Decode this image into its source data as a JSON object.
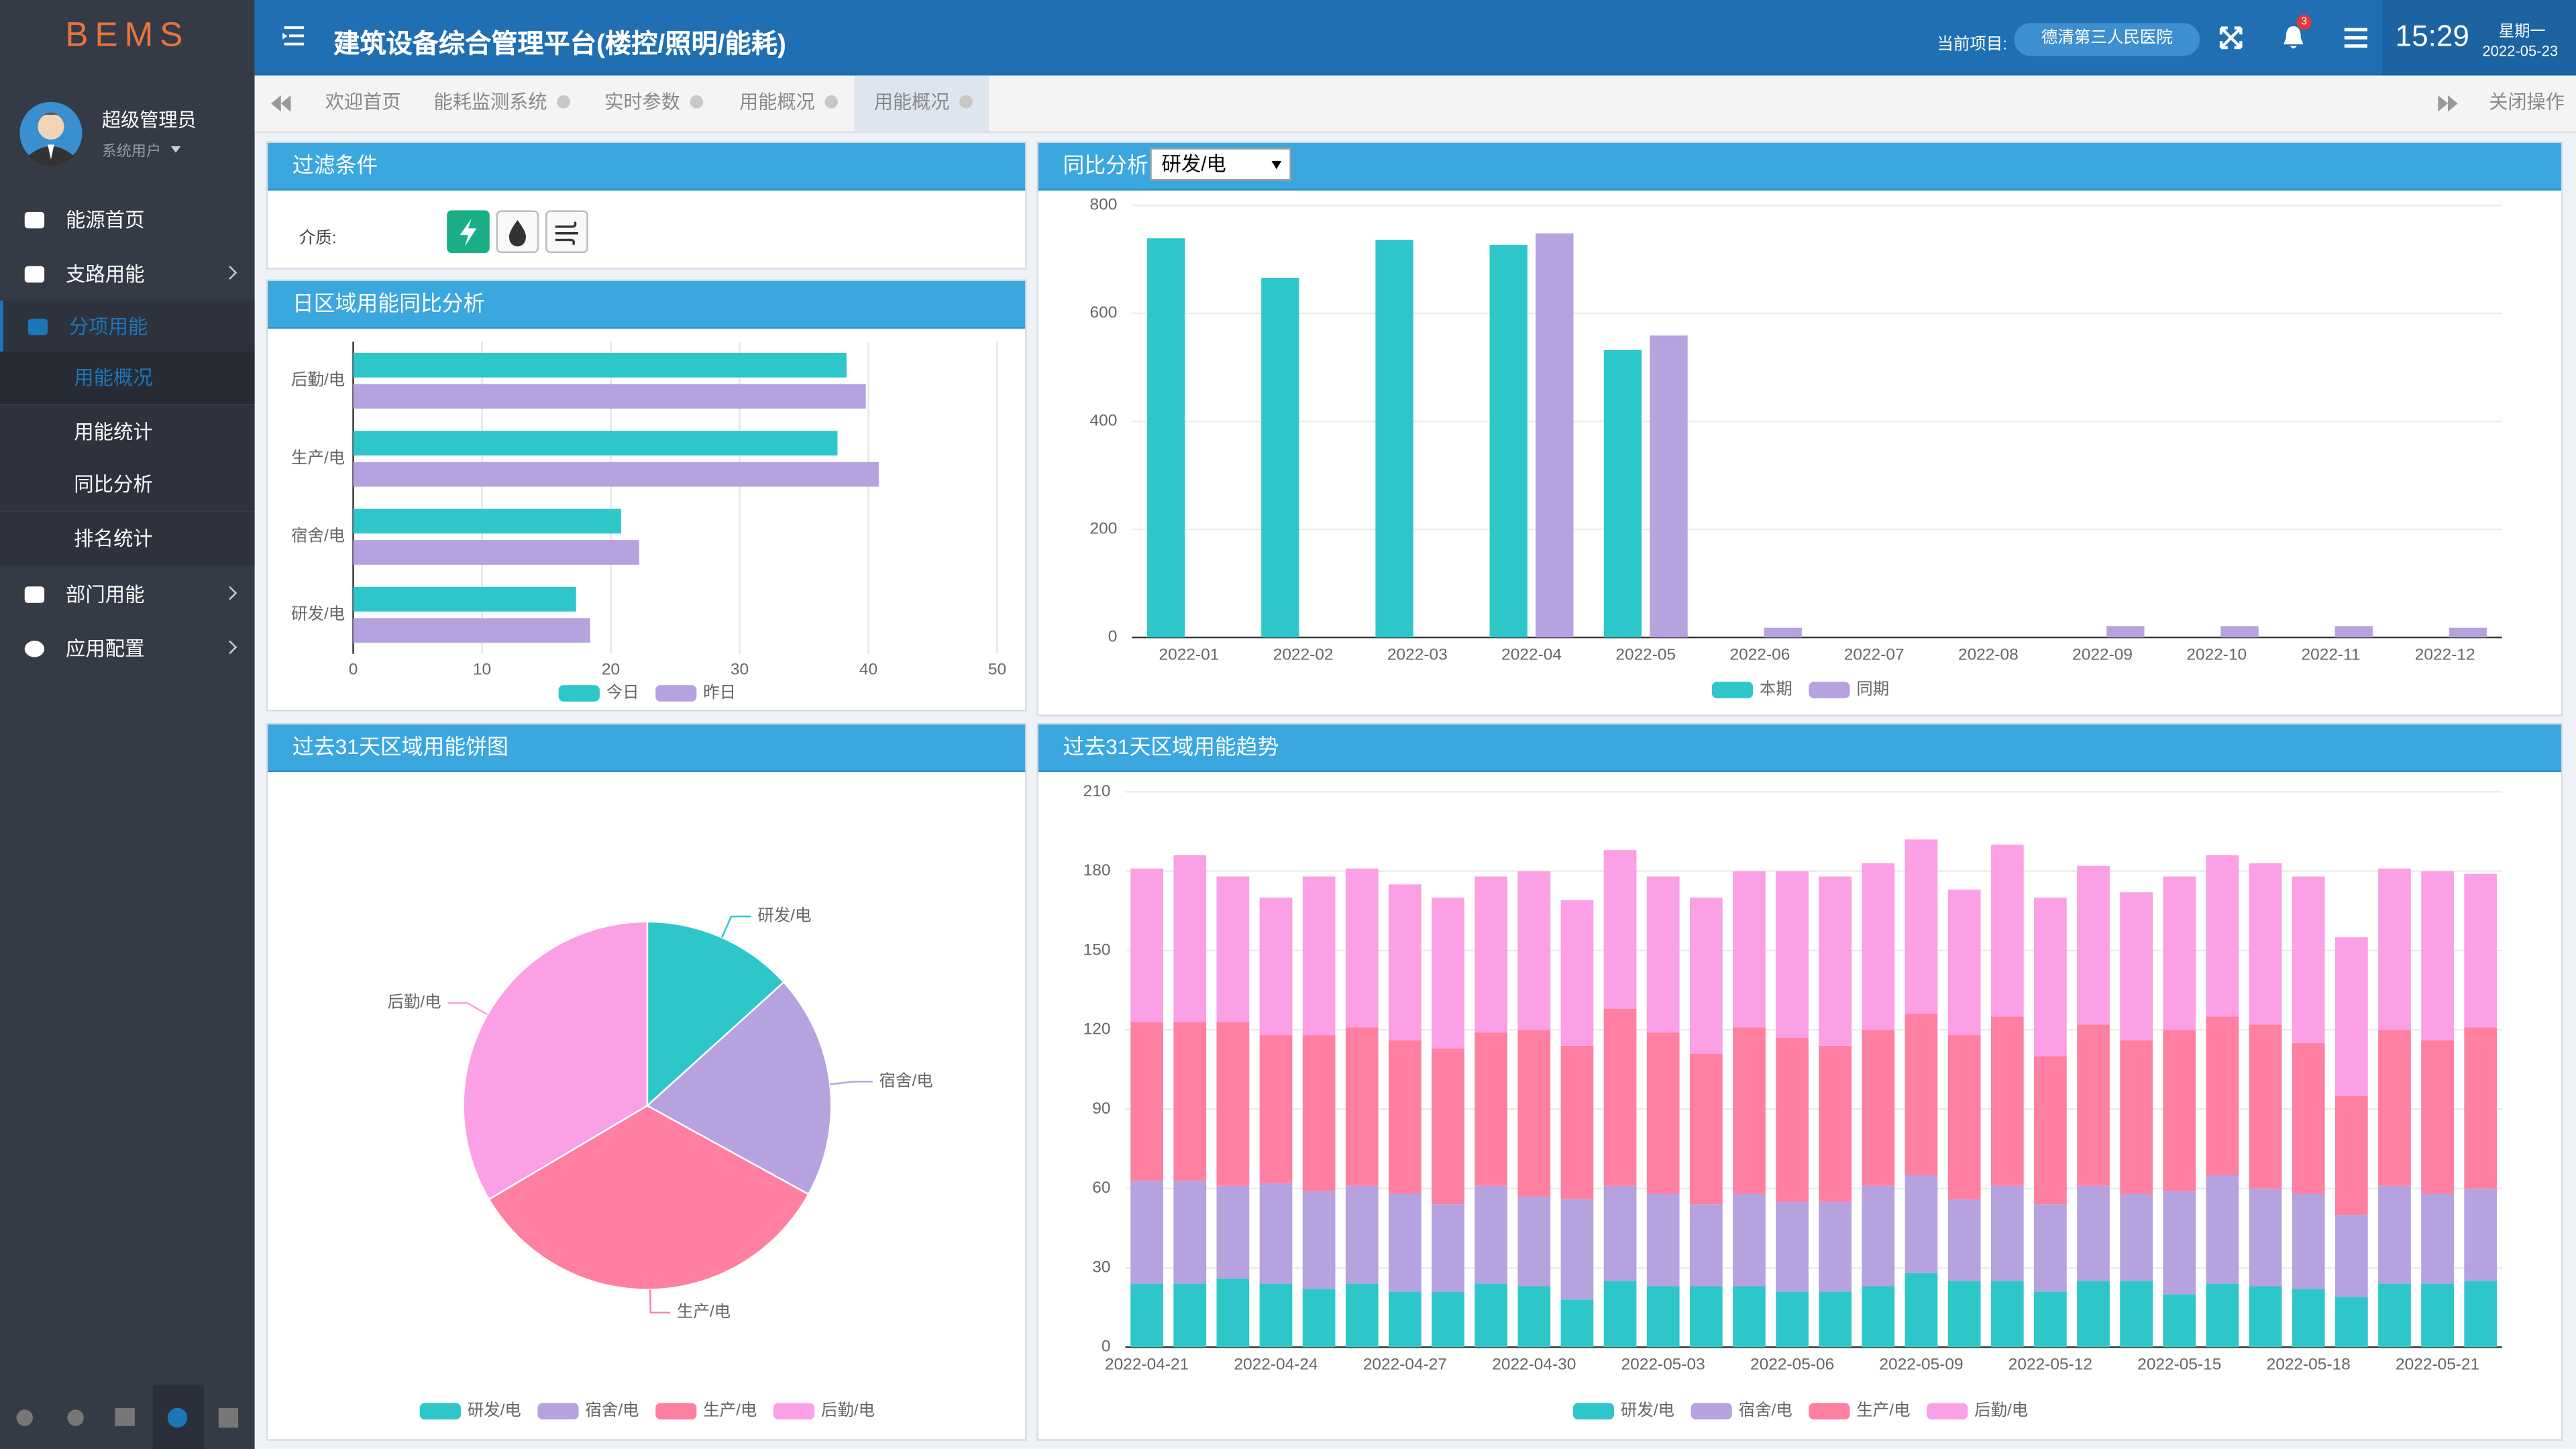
{
  "sidebar": {
    "logo": "BEMS",
    "user": "超级管理员",
    "role": "系统用户",
    "menu": [
      {
        "label": "能源首页"
      },
      {
        "label": "支路用能"
      },
      {
        "label": "分项用能",
        "children": [
          "用能概况",
          "用能统计",
          "同比分析",
          "排名统计"
        ]
      },
      {
        "label": "部门用能"
      },
      {
        "label": "应用配置"
      }
    ]
  },
  "header": {
    "title": "建筑设备综合管理平台(楼控/照明/能耗)",
    "project_label": "当前项目:",
    "project": "德清第三人民医院",
    "notifications": 3,
    "time": "15:29",
    "weekday": "星期一",
    "date": "2022-05-23"
  },
  "tabs": {
    "items": [
      "欢迎首页",
      "能耗监测系统",
      "实时参数",
      "用能概况",
      "用能概况"
    ],
    "close_all": "关闭操作"
  },
  "filter": {
    "title": "过滤条件",
    "medium_label": "介质:"
  },
  "chart_data": [
    {
      "type": "bar",
      "horizontal": true,
      "title": "日区域用能同比分析",
      "categories": [
        "后勤/电",
        "生产/电",
        "宿舍/电",
        "研发/电"
      ],
      "series": [
        {
          "name": "今日",
          "color": "#2ec7c9",
          "values": [
            38.3,
            37.6,
            20.8,
            17.3
          ]
        },
        {
          "name": "昨日",
          "color": "#b6a2de",
          "values": [
            39.8,
            40.8,
            22.2,
            18.4
          ]
        }
      ],
      "xlim": [
        0,
        50
      ],
      "xticks": [
        0,
        10,
        20,
        30,
        40,
        50
      ],
      "grid": true
    },
    {
      "type": "bar",
      "title": "同比分析",
      "selector": "研发/电",
      "categories": [
        "2022-01",
        "2022-02",
        "2022-03",
        "2022-04",
        "2022-05",
        "2022-06",
        "2022-07",
        "2022-08",
        "2022-09",
        "2022-10",
        "2022-11",
        "2022-12"
      ],
      "series": [
        {
          "name": "本期",
          "color": "#2ec7c9",
          "values": [
            739,
            666,
            736,
            727,
            532,
            null,
            null,
            null,
            null,
            null,
            null,
            null
          ]
        },
        {
          "name": "同期",
          "color": "#b6a2de",
          "values": [
            null,
            null,
            null,
            748,
            559,
            18,
            null,
            null,
            21,
            21,
            21,
            18
          ]
        }
      ],
      "ylim": [
        0,
        800
      ],
      "yticks": [
        0,
        200,
        400,
        600,
        800
      ],
      "grid": true
    },
    {
      "type": "pie",
      "title": "过去31天区域用能饼图",
      "categories": [
        "研发/电",
        "宿舍/电",
        "生产/电",
        "后勤/电"
      ],
      "values": [
        13.3,
        19.7,
        33.5,
        33.5
      ],
      "colors": [
        "#2ec7c9",
        "#b6a2de",
        "#ff7fa3",
        "#fba0e4"
      ]
    },
    {
      "type": "bar",
      "stacked": true,
      "title": "过去31天区域用能趋势",
      "categories": [
        "2022-04-21",
        null,
        null,
        "2022-04-24",
        null,
        null,
        "2022-04-27",
        null,
        null,
        "2022-04-30",
        null,
        null,
        "2022-05-03",
        null,
        null,
        "2022-05-06",
        null,
        null,
        "2022-05-09",
        null,
        null,
        "2022-05-12",
        null,
        null,
        "2022-05-15",
        null,
        null,
        "2022-05-18",
        null,
        null,
        "2022-05-21",
        null
      ],
      "series": [
        {
          "name": "研发/电",
          "color": "#2ec7c9",
          "values": [
            24,
            24,
            26,
            24,
            22,
            24,
            21,
            21,
            24,
            23,
            18,
            25,
            23,
            23,
            23,
            21,
            21,
            23,
            28,
            25,
            25,
            21,
            25,
            25,
            20,
            24,
            23,
            22,
            19,
            24,
            24,
            25
          ]
        },
        {
          "name": "宿舍/电",
          "color": "#b6a2de",
          "values": [
            39,
            39,
            35,
            38,
            37,
            37,
            37,
            33,
            37,
            34,
            38,
            36,
            35,
            31,
            35,
            34,
            34,
            38,
            37,
            31,
            36,
            33,
            36,
            33,
            39,
            41,
            37,
            36,
            31,
            37,
            34,
            35
          ]
        },
        {
          "name": "生产/电",
          "color": "#ff7fa3",
          "values": [
            60,
            60,
            62,
            56,
            59,
            60,
            58,
            59,
            58,
            63,
            58,
            67,
            61,
            57,
            63,
            62,
            59,
            59,
            61,
            62,
            64,
            56,
            61,
            58,
            61,
            60,
            62,
            57,
            45,
            59,
            58,
            61
          ]
        },
        {
          "name": "后勤/电",
          "color": "#fba0e4",
          "values": [
            58,
            63,
            55,
            52,
            60,
            60,
            59,
            57,
            59,
            60,
            55,
            60,
            59,
            59,
            59,
            63,
            64,
            63,
            66,
            55,
            65,
            60,
            60,
            56,
            58,
            61,
            61,
            63,
            60,
            61,
            64,
            58
          ]
        }
      ],
      "ylim": [
        0,
        210
      ],
      "yticks": [
        0,
        30,
        60,
        90,
        120,
        150,
        180,
        210
      ],
      "grid": true
    }
  ]
}
